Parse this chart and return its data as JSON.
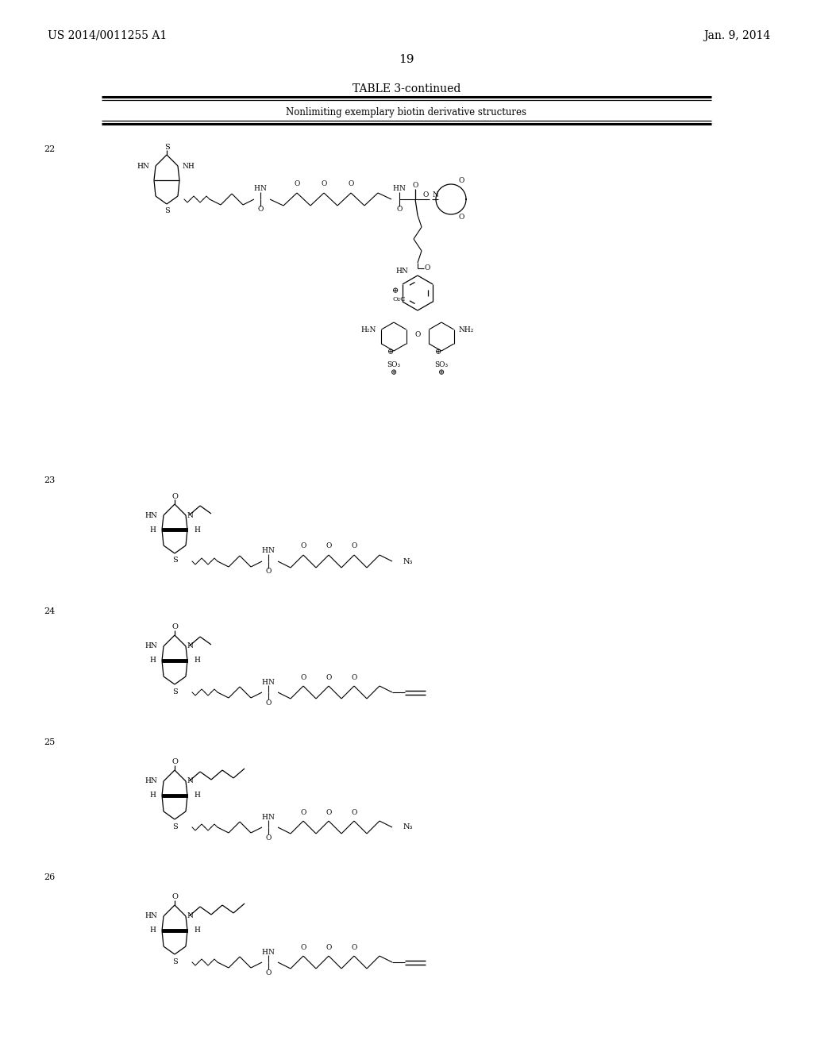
{
  "background_color": "#ffffff",
  "page_width": 10.24,
  "page_height": 13.2,
  "header_left": "US 2014/0011255 A1",
  "header_right": "Jan. 9, 2014",
  "page_number": "19",
  "table_title": "TABLE 3-continued",
  "table_subtitle": "Nonlimiting exemplary biotin derivative structures",
  "font_size_header": 10,
  "font_size_table_title": 10,
  "font_size_subtitle": 8.5,
  "font_size_compound_num": 8,
  "font_size_structure": 7
}
